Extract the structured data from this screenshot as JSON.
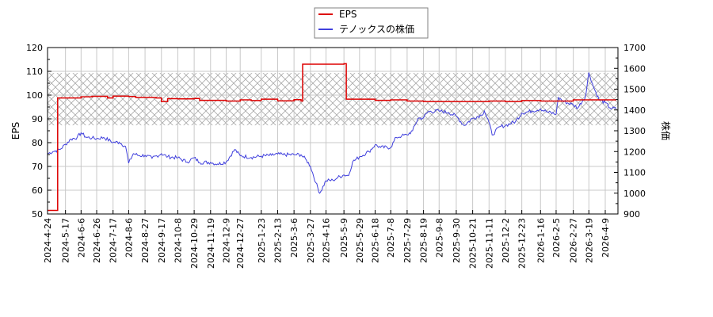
{
  "chart_data": {
    "type": "line",
    "title": "",
    "legend": {
      "position": "top-center",
      "entries": [
        {
          "label": "EPS",
          "color": "#dd0000"
        },
        {
          "label": "テノックスの株価",
          "color": "#4040dd"
        }
      ]
    },
    "xlabel": "",
    "ylabel_left": "EPS",
    "ylabel_right": "株価",
    "ylim_left": [
      50,
      120
    ],
    "ylim_right": [
      900,
      1700
    ],
    "yticks_left": [
      50,
      60,
      70,
      80,
      90,
      100,
      110,
      120
    ],
    "yticks_right": [
      900,
      1000,
      1100,
      1200,
      1300,
      1400,
      1500,
      1600,
      1700
    ],
    "grid": true,
    "hatched_band_eps": [
      87.3,
      109.3
    ],
    "x_tick_labels": [
      "2024-4-24",
      "2024-5-17",
      "2024-6-6",
      "2024-6-26",
      "2024-7-17",
      "2024-8-6",
      "2024-8-27",
      "2024-9-17",
      "2024-10-8",
      "2024-10-29",
      "2024-11-19",
      "2024-12-9",
      "2024-12-27",
      "2025-1-23",
      "2025-2-13",
      "2025-3-6",
      "2025-3-27",
      "2025-4-16",
      "2025-5-9",
      "2025-5-29",
      "2025-6-18",
      "2025-7-8",
      "2025-7-29",
      "2025-8-19",
      "2025-9-8",
      "2025-9-30",
      "2025-10-21",
      "2025-11-11",
      "2025-12-2",
      "2025-12-23",
      "2026-1-16",
      "2026-2-5",
      "2026-2-27",
      "2026-3-19",
      "2026-4-9"
    ],
    "series": [
      {
        "name": "EPS",
        "axis": "left",
        "color": "#dd0000",
        "points": [
          [
            "2024-4-24",
            51.5
          ],
          [
            "2024-5-6",
            51.5
          ],
          [
            "2024-5-7",
            98.8
          ],
          [
            "2024-6-6",
            99.3
          ],
          [
            "2024-6-20",
            99.5
          ],
          [
            "2024-7-10",
            98.8
          ],
          [
            "2024-7-17",
            99.6
          ],
          [
            "2024-8-6",
            99.4
          ],
          [
            "2024-8-15",
            99.0
          ],
          [
            "2024-9-10",
            98.8
          ],
          [
            "2024-9-17",
            97.3
          ],
          [
            "2024-9-25",
            98.5
          ],
          [
            "2024-10-8",
            98.4
          ],
          [
            "2024-10-29",
            98.6
          ],
          [
            "2024-11-5",
            97.8
          ],
          [
            "2024-12-9",
            97.5
          ],
          [
            "2024-12-27",
            98.0
          ],
          [
            "2025-1-10",
            97.7
          ],
          [
            "2025-1-23",
            98.3
          ],
          [
            "2025-2-13",
            97.6
          ],
          [
            "2025-3-6",
            98.1
          ],
          [
            "2025-3-15",
            97.5
          ],
          [
            "2025-3-17",
            113.0
          ],
          [
            "2025-4-16",
            113.0
          ],
          [
            "2025-5-9",
            113.2
          ],
          [
            "2025-5-12",
            98.3
          ],
          [
            "2025-6-18",
            97.8
          ],
          [
            "2025-7-8",
            98.0
          ],
          [
            "2025-7-29",
            97.5
          ],
          [
            "2025-8-19",
            97.3
          ],
          [
            "2025-9-30",
            97.3
          ],
          [
            "2025-10-21",
            97.3
          ],
          [
            "2025-11-11",
            97.5
          ],
          [
            "2025-12-2",
            97.3
          ],
          [
            "2025-12-23",
            97.7
          ],
          [
            "2026-1-16",
            97.5
          ],
          [
            "2026-2-5",
            97.5
          ],
          [
            "2026-2-27",
            98.0
          ],
          [
            "2026-3-19",
            98.0
          ],
          [
            "2026-4-9",
            98.0
          ],
          [
            "2026-4-23",
            98.0
          ]
        ]
      },
      {
        "name": "テノックスの株価",
        "axis": "right",
        "color": "#4040dd",
        "points": [
          [
            "2024-4-24",
            1190
          ],
          [
            "2024-5-1",
            1200
          ],
          [
            "2024-5-10",
            1210
          ],
          [
            "2024-5-17",
            1235
          ],
          [
            "2024-5-24",
            1260
          ],
          [
            "2024-6-1",
            1268
          ],
          [
            "2024-6-6",
            1290
          ],
          [
            "2024-6-12",
            1270
          ],
          [
            "2024-6-20",
            1265
          ],
          [
            "2024-6-26",
            1262
          ],
          [
            "2024-7-5",
            1268
          ],
          [
            "2024-7-17",
            1244
          ],
          [
            "2024-7-25",
            1245
          ],
          [
            "2024-8-2",
            1225
          ],
          [
            "2024-8-6",
            1144
          ],
          [
            "2024-8-12",
            1190
          ],
          [
            "2024-8-20",
            1180
          ],
          [
            "2024-8-27",
            1182
          ],
          [
            "2024-9-5",
            1168
          ],
          [
            "2024-9-17",
            1190
          ],
          [
            "2024-9-25",
            1175
          ],
          [
            "2024-10-8",
            1170
          ],
          [
            "2024-10-20",
            1150
          ],
          [
            "2024-10-29",
            1170
          ],
          [
            "2024-11-5",
            1148
          ],
          [
            "2024-11-19",
            1148
          ],
          [
            "2024-11-28",
            1140
          ],
          [
            "2024-12-9",
            1150
          ],
          [
            "2024-12-20",
            1210
          ],
          [
            "2024-12-27",
            1180
          ],
          [
            "2025-1-10",
            1172
          ],
          [
            "2025-1-23",
            1178
          ],
          [
            "2025-2-5",
            1182
          ],
          [
            "2025-2-13",
            1188
          ],
          [
            "2025-2-20",
            1185
          ],
          [
            "2025-3-6",
            1185
          ],
          [
            "2025-3-15",
            1185
          ],
          [
            "2025-3-22",
            1158
          ],
          [
            "2025-3-27",
            1130
          ],
          [
            "2025-4-3",
            1050
          ],
          [
            "2025-4-8",
            1000
          ],
          [
            "2025-4-16",
            1060
          ],
          [
            "2025-4-25",
            1062
          ],
          [
            "2025-5-1",
            1075
          ],
          [
            "2025-5-9",
            1088
          ],
          [
            "2025-5-15",
            1085
          ],
          [
            "2025-5-20",
            1150
          ],
          [
            "2025-5-29",
            1175
          ],
          [
            "2025-6-10",
            1200
          ],
          [
            "2025-6-18",
            1232
          ],
          [
            "2025-6-25",
            1220
          ],
          [
            "2025-7-8",
            1220
          ],
          [
            "2025-7-15",
            1268
          ],
          [
            "2025-7-22",
            1275
          ],
          [
            "2025-7-29",
            1280
          ],
          [
            "2025-8-5",
            1300
          ],
          [
            "2025-8-12",
            1360
          ],
          [
            "2025-8-19",
            1362
          ],
          [
            "2025-8-25",
            1392
          ],
          [
            "2025-9-8",
            1395
          ],
          [
            "2025-9-20",
            1388
          ],
          [
            "2025-9-30",
            1370
          ],
          [
            "2025-10-10",
            1325
          ],
          [
            "2025-10-21",
            1360
          ],
          [
            "2025-11-1",
            1375
          ],
          [
            "2025-11-5",
            1395
          ],
          [
            "2025-11-11",
            1340
          ],
          [
            "2025-11-15",
            1280
          ],
          [
            "2025-11-25",
            1320
          ],
          [
            "2025-12-2",
            1325
          ],
          [
            "2025-12-15",
            1345
          ],
          [
            "2025-12-23",
            1385
          ],
          [
            "2026-1-5",
            1395
          ],
          [
            "2026-1-16",
            1405
          ],
          [
            "2026-1-25",
            1390
          ],
          [
            "2026-2-5",
            1380
          ],
          [
            "2026-2-8",
            1460
          ],
          [
            "2026-2-15",
            1440
          ],
          [
            "2026-2-27",
            1425
          ],
          [
            "2026-3-5",
            1410
          ],
          [
            "2026-3-15",
            1470
          ],
          [
            "2026-3-19",
            1580
          ],
          [
            "2026-3-25",
            1510
          ],
          [
            "2026-4-1",
            1450
          ],
          [
            "2026-4-9",
            1435
          ],
          [
            "2026-4-15",
            1410
          ],
          [
            "2026-4-23",
            1405
          ]
        ]
      }
    ]
  }
}
